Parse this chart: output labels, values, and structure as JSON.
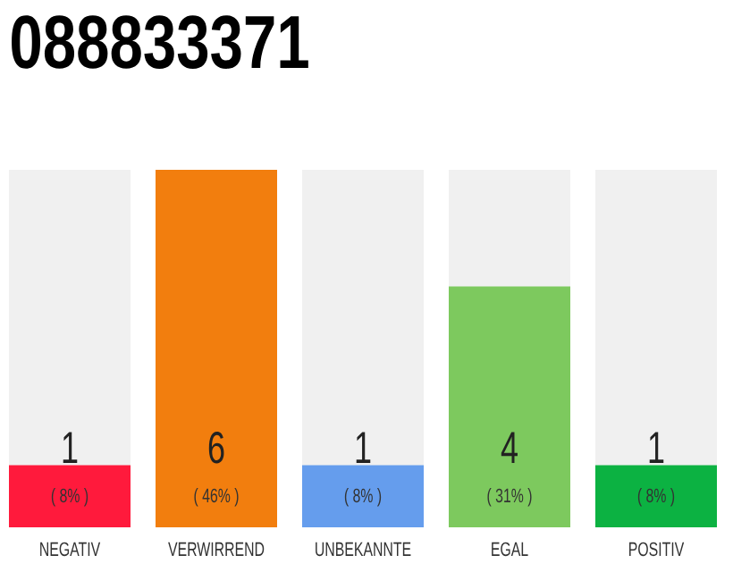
{
  "chart_data": {
    "type": "bar",
    "title": "088833371",
    "categories": [
      "NEGATIV",
      "VERWIRREND",
      "UNBEKANNTE",
      "EGAL",
      "POSITIV"
    ],
    "values": [
      8,
      46,
      8,
      31,
      8
    ],
    "annotations": [
      "1",
      "6",
      "1",
      "4",
      "1"
    ],
    "colors": [
      "#ff1a3c",
      "#f27e0e",
      "#659ded",
      "#7dc95e",
      "#0cb242"
    ],
    "value_labels": [
      "( 8% )",
      "( 46% )",
      "( 8% )",
      "( 31% )",
      "( 8% )"
    ]
  }
}
